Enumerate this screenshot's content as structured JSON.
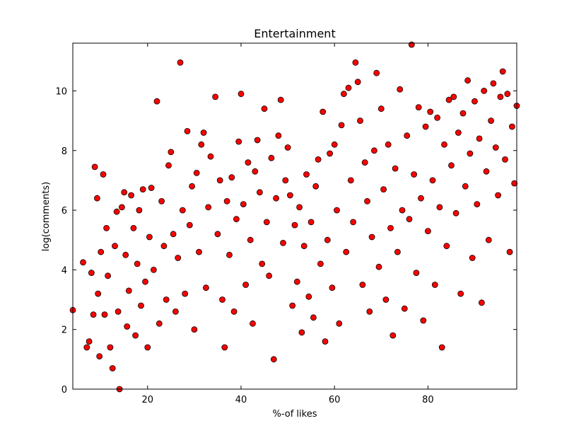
{
  "chart_data": {
    "type": "scatter",
    "title": "Entertainment",
    "xlabel": "%-of likes",
    "ylabel": "log(comments)",
    "xlim": [
      4,
      99
    ],
    "ylim": [
      0,
      11.6
    ],
    "xticks": [
      20,
      40,
      60,
      80
    ],
    "yticks": [
      0,
      2,
      4,
      6,
      8,
      10
    ],
    "grid": false,
    "legend": "none",
    "marker_color": "#ff0000",
    "marker_edge_color": "#000000",
    "series": [
      {
        "points": [
          [
            4,
            2.65
          ],
          [
            6.2,
            4.25
          ],
          [
            7.0,
            1.4
          ],
          [
            7.5,
            1.6
          ],
          [
            8.0,
            3.9
          ],
          [
            8.4,
            2.5
          ],
          [
            8.7,
            7.45
          ],
          [
            9.2,
            6.4
          ],
          [
            9.4,
            3.2
          ],
          [
            9.7,
            1.1
          ],
          [
            10.0,
            4.6
          ],
          [
            10.5,
            7.2
          ],
          [
            10.8,
            2.5
          ],
          [
            11.2,
            5.4
          ],
          [
            11.5,
            3.8
          ],
          [
            12.0,
            1.4
          ],
          [
            12.5,
            0.7
          ],
          [
            13.0,
            4.8
          ],
          [
            13.4,
            5.95
          ],
          [
            13.7,
            2.6
          ],
          [
            14.0,
            0.0
          ],
          [
            14.5,
            6.1
          ],
          [
            15.0,
            6.6
          ],
          [
            15.3,
            4.5
          ],
          [
            15.6,
            2.1
          ],
          [
            16.0,
            3.3
          ],
          [
            16.5,
            6.5
          ],
          [
            17.0,
            5.4
          ],
          [
            17.4,
            1.8
          ],
          [
            17.8,
            4.2
          ],
          [
            18.2,
            6.0
          ],
          [
            18.6,
            2.8
          ],
          [
            19.0,
            6.7
          ],
          [
            19.5,
            3.6
          ],
          [
            20.0,
            1.4
          ],
          [
            20.4,
            5.1
          ],
          [
            20.8,
            6.75
          ],
          [
            21.3,
            4.0
          ],
          [
            22.0,
            9.65
          ],
          [
            22.5,
            2.2
          ],
          [
            23.0,
            6.3
          ],
          [
            23.5,
            4.8
          ],
          [
            24.0,
            3.0
          ],
          [
            24.5,
            7.5
          ],
          [
            25.0,
            7.95
          ],
          [
            25.5,
            5.2
          ],
          [
            26.0,
            2.6
          ],
          [
            26.5,
            4.4
          ],
          [
            27.0,
            10.95
          ],
          [
            27.5,
            6.0
          ],
          [
            28.0,
            3.2
          ],
          [
            28.5,
            8.65
          ],
          [
            29.0,
            5.5
          ],
          [
            29.5,
            6.8
          ],
          [
            30.0,
            2.0
          ],
          [
            30.5,
            7.25
          ],
          [
            31.0,
            4.6
          ],
          [
            31.5,
            8.2
          ],
          [
            32.0,
            8.6
          ],
          [
            32.5,
            3.4
          ],
          [
            33.0,
            6.1
          ],
          [
            33.5,
            7.8
          ],
          [
            34.5,
            9.8
          ],
          [
            35.0,
            5.2
          ],
          [
            35.5,
            7.0
          ],
          [
            36.0,
            3.0
          ],
          [
            36.5,
            1.4
          ],
          [
            37.0,
            6.3
          ],
          [
            37.5,
            4.5
          ],
          [
            38.0,
            7.1
          ],
          [
            38.5,
            2.6
          ],
          [
            39.0,
            5.7
          ],
          [
            39.5,
            8.3
          ],
          [
            40.0,
            9.9
          ],
          [
            40.5,
            6.2
          ],
          [
            41.0,
            3.5
          ],
          [
            41.5,
            7.6
          ],
          [
            42.0,
            5.0
          ],
          [
            42.5,
            2.2
          ],
          [
            43.0,
            7.3
          ],
          [
            43.5,
            8.35
          ],
          [
            44.0,
            6.6
          ],
          [
            44.5,
            4.2
          ],
          [
            45.0,
            9.4
          ],
          [
            45.5,
            5.6
          ],
          [
            46.0,
            3.8
          ],
          [
            46.5,
            7.75
          ],
          [
            47.0,
            1.0
          ],
          [
            47.5,
            6.4
          ],
          [
            48.0,
            8.5
          ],
          [
            48.5,
            9.7
          ],
          [
            49.0,
            4.9
          ],
          [
            49.5,
            7.0
          ],
          [
            50.0,
            8.1
          ],
          [
            50.5,
            6.5
          ],
          [
            51.0,
            2.8
          ],
          [
            51.5,
            5.5
          ],
          [
            52.0,
            3.6
          ],
          [
            52.5,
            6.1
          ],
          [
            53.0,
            1.9
          ],
          [
            53.5,
            4.8
          ],
          [
            54.0,
            7.2
          ],
          [
            54.5,
            3.1
          ],
          [
            55.0,
            5.6
          ],
          [
            55.5,
            2.4
          ],
          [
            56.0,
            6.8
          ],
          [
            56.5,
            7.7
          ],
          [
            57.0,
            4.2
          ],
          [
            57.5,
            9.3
          ],
          [
            58.0,
            1.6
          ],
          [
            58.5,
            5.0
          ],
          [
            59.0,
            7.9
          ],
          [
            59.5,
            3.4
          ],
          [
            60.0,
            8.2
          ],
          [
            60.5,
            6.0
          ],
          [
            61.0,
            2.2
          ],
          [
            61.5,
            8.85
          ],
          [
            62.0,
            9.9
          ],
          [
            62.5,
            4.6
          ],
          [
            63.0,
            10.1
          ],
          [
            63.5,
            7.0
          ],
          [
            64.0,
            5.6
          ],
          [
            64.5,
            10.95
          ],
          [
            65.0,
            10.3
          ],
          [
            65.5,
            9.0
          ],
          [
            66.0,
            3.5
          ],
          [
            66.5,
            7.6
          ],
          [
            67.0,
            6.3
          ],
          [
            67.5,
            2.6
          ],
          [
            68.0,
            5.1
          ],
          [
            68.5,
            8.0
          ],
          [
            69.0,
            10.6
          ],
          [
            69.5,
            4.1
          ],
          [
            70.0,
            9.4
          ],
          [
            70.5,
            6.7
          ],
          [
            71.0,
            3.0
          ],
          [
            71.5,
            8.2
          ],
          [
            72.0,
            5.4
          ],
          [
            72.5,
            1.8
          ],
          [
            73.0,
            7.4
          ],
          [
            73.5,
            4.6
          ],
          [
            74.0,
            10.05
          ],
          [
            74.5,
            6.0
          ],
          [
            75.0,
            2.7
          ],
          [
            75.5,
            8.5
          ],
          [
            76.0,
            5.7
          ],
          [
            76.5,
            11.55
          ],
          [
            77.0,
            7.2
          ],
          [
            77.5,
            3.9
          ],
          [
            78.0,
            9.45
          ],
          [
            78.5,
            6.4
          ],
          [
            79.0,
            2.3
          ],
          [
            79.5,
            8.8
          ],
          [
            80.0,
            5.3
          ],
          [
            80.5,
            9.3
          ],
          [
            81.0,
            7.0
          ],
          [
            81.5,
            3.5
          ],
          [
            82.0,
            9.1
          ],
          [
            82.5,
            6.1
          ],
          [
            83.0,
            1.4
          ],
          [
            83.5,
            8.2
          ],
          [
            84.0,
            4.8
          ],
          [
            84.5,
            9.7
          ],
          [
            85.0,
            7.5
          ],
          [
            85.5,
            9.8
          ],
          [
            86.0,
            5.9
          ],
          [
            86.5,
            8.6
          ],
          [
            87.0,
            3.2
          ],
          [
            87.5,
            9.25
          ],
          [
            88.0,
            6.8
          ],
          [
            88.5,
            10.35
          ],
          [
            89.0,
            7.9
          ],
          [
            89.5,
            4.4
          ],
          [
            90.0,
            9.65
          ],
          [
            90.5,
            6.2
          ],
          [
            91.0,
            8.4
          ],
          [
            91.5,
            2.9
          ],
          [
            92.0,
            10.0
          ],
          [
            92.5,
            7.3
          ],
          [
            93.0,
            5.0
          ],
          [
            93.5,
            9.0
          ],
          [
            94.0,
            10.25
          ],
          [
            94.5,
            8.1
          ],
          [
            95.0,
            6.5
          ],
          [
            95.5,
            9.8
          ],
          [
            96.0,
            10.65
          ],
          [
            96.5,
            7.7
          ],
          [
            97.0,
            9.9
          ],
          [
            97.5,
            4.6
          ],
          [
            98.0,
            8.8
          ],
          [
            98.5,
            6.9
          ],
          [
            99.0,
            9.5
          ]
        ]
      }
    ]
  }
}
